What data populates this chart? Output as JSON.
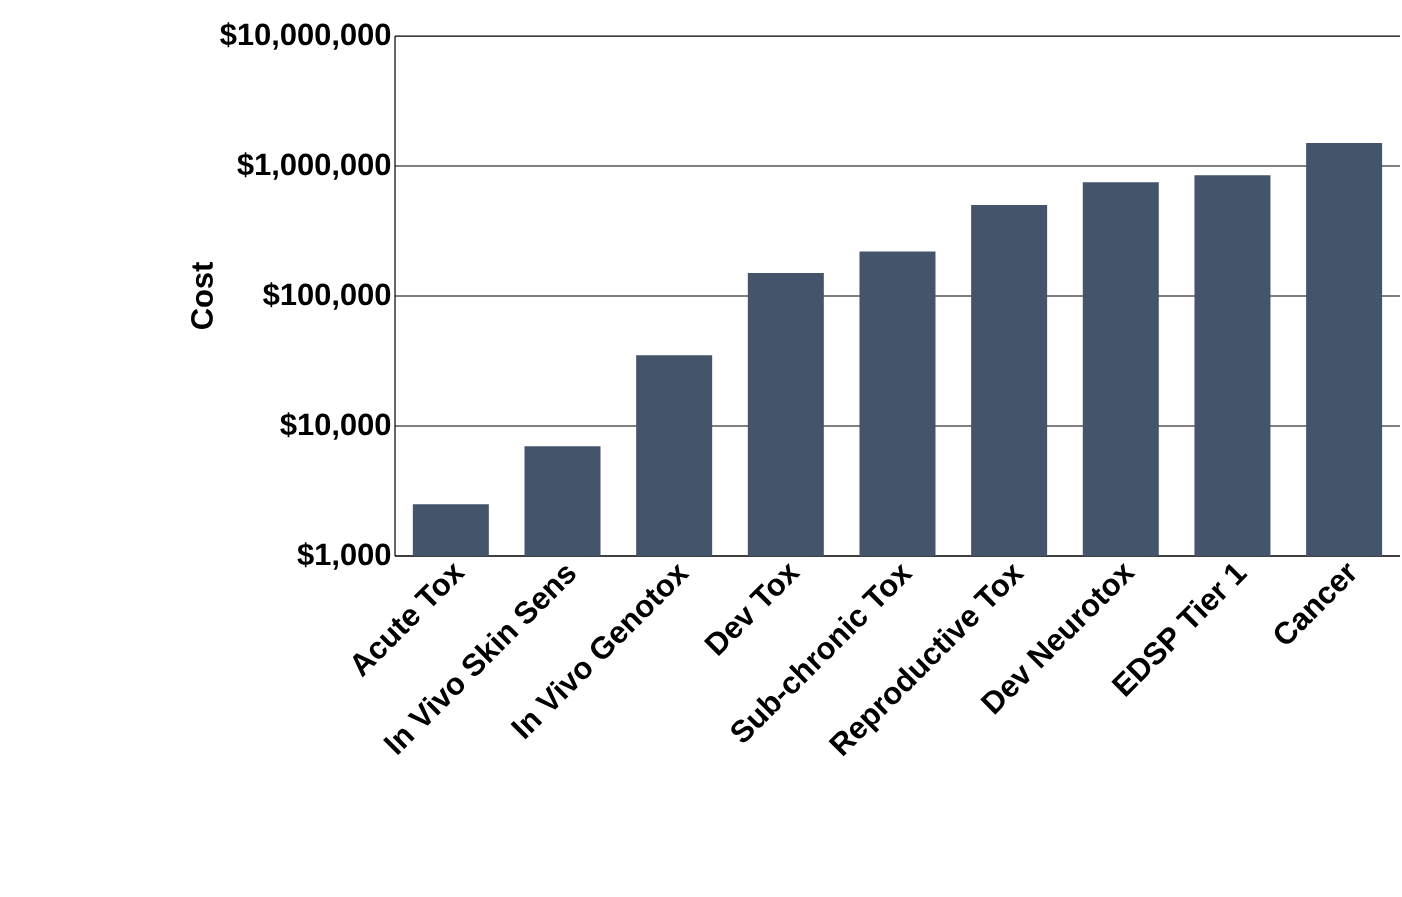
{
  "chart_data": {
    "type": "bar",
    "ylabel": "Cost",
    "categories": [
      "Acute Tox",
      "In Vivo Skin Sens",
      "In Vivo Genotox",
      "Dev Tox",
      "Sub-chronic Tox",
      "Reproductive Tox",
      "Dev Neurotox",
      "EDSP Tier 1",
      "Cancer"
    ],
    "values": [
      2500,
      7000,
      35000,
      150000,
      220000,
      500000,
      750000,
      850000,
      1500000
    ],
    "color": "#44546a",
    "log": true,
    "grid": "y",
    "ylim": [
      1000,
      10000000
    ],
    "yticks": [
      {
        "value": 1000,
        "label": "$1,000"
      },
      {
        "value": 10000,
        "label": "$10,000"
      },
      {
        "value": 100000,
        "label": "$100,000"
      },
      {
        "value": 1000000,
        "label": "$1,000,000"
      },
      {
        "value": 10000000,
        "label": "$10,000,000"
      }
    ]
  }
}
